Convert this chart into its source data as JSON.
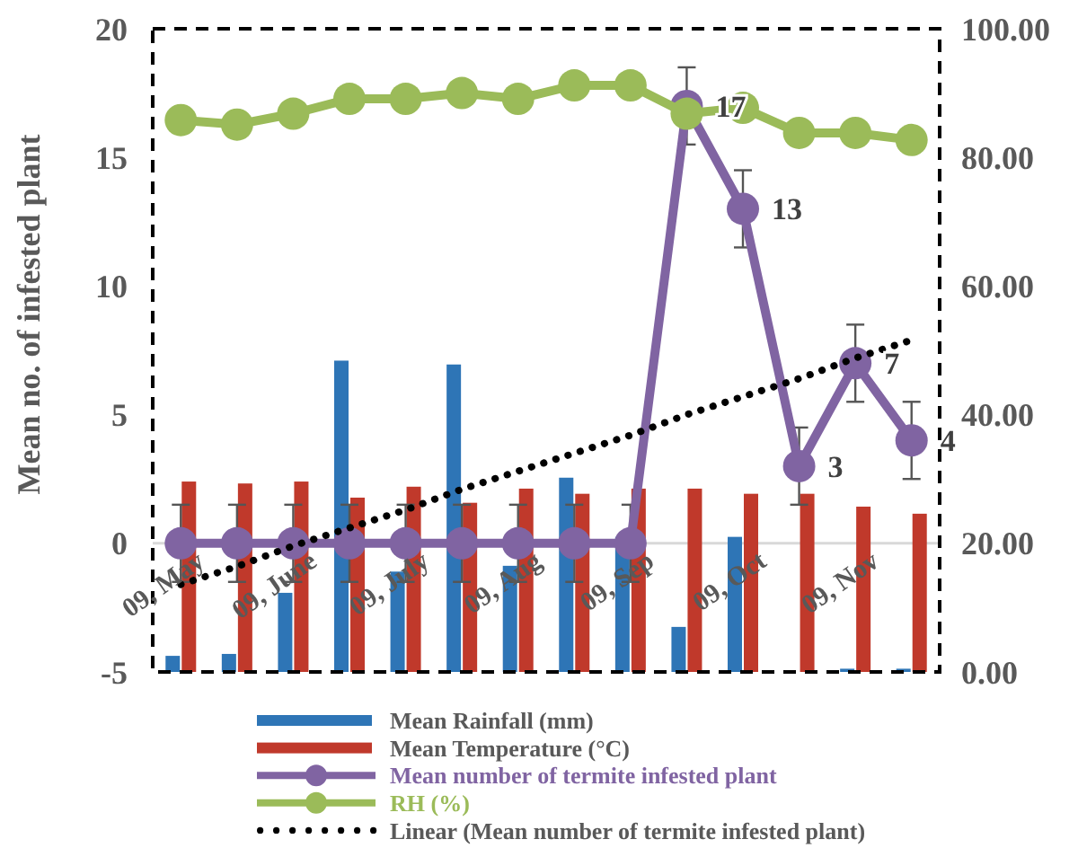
{
  "chart_data": {
    "type": "bar",
    "ylabel": "Mean no. of  infested plant",
    "categories": [
      "09, May",
      null,
      "09, June",
      null,
      "09, July",
      null,
      "09, Aug",
      null,
      "09, Sep",
      null,
      "09, Oct",
      null,
      "09, Nov",
      null
    ],
    "series": [
      {
        "name": "Mean Rainfall (mm)",
        "axis": "y2",
        "color": "#2e75b6",
        "values": [
          2.5,
          2.8,
          12.3,
          48.4,
          15.6,
          47.8,
          16.5,
          30.2,
          21,
          7,
          21,
          0,
          0.5,
          0.5
        ]
      },
      {
        "name": "Mean Temperature (°C)",
        "axis": "y2",
        "color": "#c0392b",
        "values": [
          29.6,
          29.3,
          29.6,
          27.1,
          28.8,
          26.3,
          28.5,
          27.7,
          28.5,
          28.5,
          27.7,
          27.7,
          25.7,
          24.6
        ]
      },
      {
        "name": "Mean number of termite infested plant",
        "type": "line",
        "color": "#8064a2",
        "marker": "circle",
        "values": [
          0,
          0,
          0,
          0,
          0,
          0,
          0,
          0,
          0,
          17,
          13,
          3,
          7,
          4
        ],
        "errors": [
          1.5,
          1.5,
          1.5,
          1.5,
          1.5,
          1.5,
          1.5,
          1.5,
          1.5,
          1.5,
          1.5,
          1.5,
          1.5,
          1.5
        ],
        "value_labels": [
          null,
          null,
          null,
          null,
          null,
          null,
          null,
          null,
          null,
          "17",
          "13",
          "3",
          "7",
          "4"
        ]
      },
      {
        "name": "RH (%)",
        "type": "line",
        "axis": "y2",
        "color": "#9bbb59",
        "marker": "circle",
        "values": [
          85.8,
          85.1,
          86.8,
          89.1,
          89.1,
          90,
          89.1,
          91.2,
          91.2,
          86.8,
          87.7,
          83.8,
          83.8,
          82.7
        ]
      },
      {
        "name": "Linear (Mean number of termite infested plant)",
        "type": "line",
        "color": "#000000",
        "marker": "none",
        "line_style": "dotted",
        "values": [
          -1.6,
          -0.9,
          -0.1,
          0.6,
          1.3,
          2.1,
          2.8,
          3.5,
          4.2,
          5,
          5.7,
          6.4,
          7.2,
          7.9
        ]
      }
    ],
    "ylim": [
      -5,
      20
    ],
    "yticks": [
      -5,
      0,
      5,
      10,
      15,
      20
    ],
    "y2lim": [
      0,
      100
    ],
    "y2ticks": [
      {
        "value": 0,
        "label": "0.00"
      },
      {
        "value": 20,
        "label": "20.00"
      },
      {
        "value": 40,
        "label": "40.00"
      },
      {
        "value": 60,
        "label": "60.00"
      },
      {
        "value": 80,
        "label": "80.00"
      },
      {
        "value": 100,
        "label": "100.00"
      }
    ],
    "legend": "bottom",
    "grid": false
  }
}
